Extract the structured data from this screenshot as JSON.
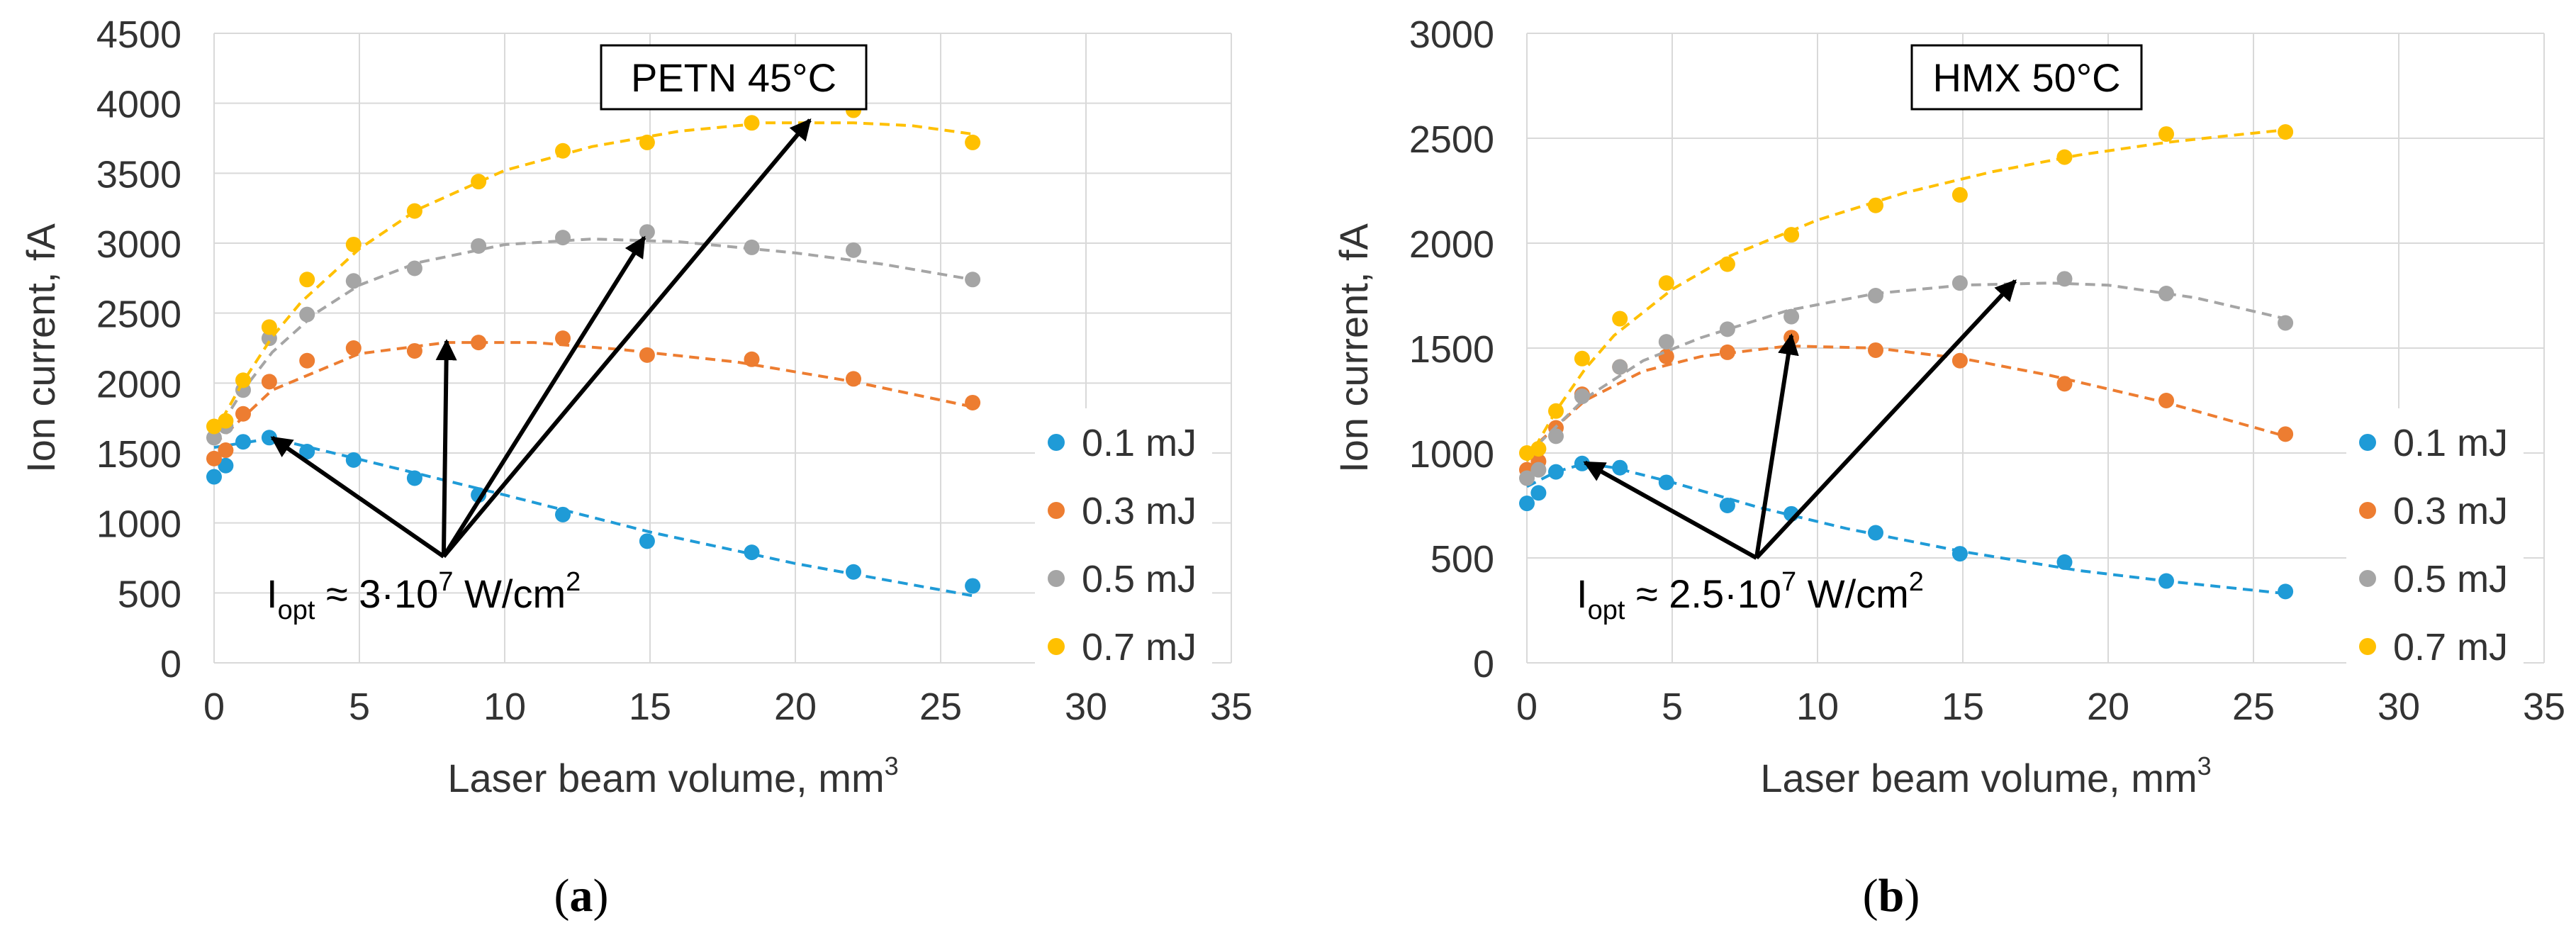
{
  "chart_data": [
    {
      "type": "scatter",
      "panel_label": "a",
      "title": "PETN 45°C",
      "xlabel": "Laser beam volume, mm",
      "xlabel_sup": "3",
      "ylabel": "Ion current, fA",
      "xlim": [
        0,
        35
      ],
      "ylim": [
        0,
        4500
      ],
      "xticks": [
        0,
        5,
        10,
        15,
        20,
        25,
        30,
        35
      ],
      "yticks": [
        0,
        500,
        1000,
        1500,
        2000,
        2500,
        3000,
        3500,
        4000,
        4500
      ],
      "grid": true,
      "legend": "right",
      "series": [
        {
          "name": "0.1 mJ",
          "color": "#1F9BD7",
          "points": [
            [
              0,
              1330
            ],
            [
              0.4,
              1410
            ],
            [
              1,
              1580
            ],
            [
              1.9,
              1610
            ],
            [
              3.2,
              1510
            ],
            [
              4.8,
              1450
            ],
            [
              6.9,
              1320
            ],
            [
              9.1,
              1200
            ],
            [
              12,
              1060
            ],
            [
              14.9,
              870
            ],
            [
              18.5,
              790
            ],
            [
              22,
              650
            ],
            [
              26.1,
              550
            ]
          ],
          "trend": [
            [
              0,
              1540
            ],
            [
              2,
              1605
            ],
            [
              5,
              1455
            ],
            [
              10,
              1200
            ],
            [
              15,
              935
            ],
            [
              20,
              710
            ],
            [
              26.1,
              480
            ]
          ]
        },
        {
          "name": "0.3 mJ",
          "color": "#ED7D31",
          "points": [
            [
              0,
              1460
            ],
            [
              0.4,
              1520
            ],
            [
              1,
              1780
            ],
            [
              1.9,
              2010
            ],
            [
              3.2,
              2160
            ],
            [
              4.8,
              2250
            ],
            [
              6.9,
              2230
            ],
            [
              9.1,
              2290
            ],
            [
              12,
              2320
            ],
            [
              14.9,
              2200
            ],
            [
              18.5,
              2170
            ],
            [
              22,
              2030
            ],
            [
              26.1,
              1860
            ]
          ],
          "trend": [
            [
              0,
              1560
            ],
            [
              2,
              1950
            ],
            [
              5,
              2210
            ],
            [
              8,
              2290
            ],
            [
              11,
              2290
            ],
            [
              14,
              2240
            ],
            [
              18,
              2150
            ],
            [
              22,
              2010
            ],
            [
              26.1,
              1830
            ]
          ]
        },
        {
          "name": "0.5 mJ",
          "color": "#A5A5A5",
          "points": [
            [
              0,
              1610
            ],
            [
              0.4,
              1690
            ],
            [
              1,
              1950
            ],
            [
              1.9,
              2320
            ],
            [
              3.2,
              2490
            ],
            [
              4.8,
              2730
            ],
            [
              6.9,
              2820
            ],
            [
              9.1,
              2980
            ],
            [
              12,
              3040
            ],
            [
              14.9,
              3080
            ],
            [
              18.5,
              2970
            ],
            [
              22,
              2950
            ],
            [
              26.1,
              2740
            ]
          ],
          "trend": [
            [
              0,
              1620
            ],
            [
              1,
              1950
            ],
            [
              2,
              2220
            ],
            [
              3.5,
              2500
            ],
            [
              5,
              2700
            ],
            [
              7,
              2860
            ],
            [
              10,
              2990
            ],
            [
              13,
              3030
            ],
            [
              16,
              3010
            ],
            [
              20,
              2930
            ],
            [
              23,
              2850
            ],
            [
              26.1,
              2740
            ]
          ]
        },
        {
          "name": "0.7 mJ",
          "color": "#FFC000",
          "points": [
            [
              0,
              1690
            ],
            [
              0.4,
              1730
            ],
            [
              1,
              2020
            ],
            [
              1.9,
              2400
            ],
            [
              3.2,
              2740
            ],
            [
              4.8,
              2990
            ],
            [
              6.9,
              3230
            ],
            [
              9.1,
              3440
            ],
            [
              12,
              3660
            ],
            [
              14.9,
              3720
            ],
            [
              18.5,
              3860
            ],
            [
              22,
              3950
            ],
            [
              26.1,
              3720
            ]
          ],
          "trend": [
            [
              0,
              1640
            ],
            [
              1,
              2010
            ],
            [
              2,
              2330
            ],
            [
              3,
              2580
            ],
            [
              5,
              2960
            ],
            [
              7,
              3240
            ],
            [
              10,
              3520
            ],
            [
              13,
              3690
            ],
            [
              16,
              3800
            ],
            [
              19,
              3860
            ],
            [
              22,
              3860
            ],
            [
              24,
              3840
            ],
            [
              26.1,
              3780
            ]
          ]
        }
      ],
      "annotation": {
        "label": "I",
        "sub": "opt",
        "approx": " ≈ 3·10",
        "exp": "7",
        "unit": " W/cm",
        "unit_sup": "2"
      },
      "arrows": {
        "origin": [
          7.9,
          760
        ],
        "targets": [
          [
            2,
            1610
          ],
          [
            8,
            2300
          ],
          [
            14.8,
            3040
          ],
          [
            20.5,
            3880
          ]
        ]
      }
    },
    {
      "type": "scatter",
      "panel_label": "b",
      "title": "HMX 50°C",
      "xlabel": "Laser beam volume, mm",
      "xlabel_sup": "3",
      "ylabel": "Ion current, fA",
      "xlim": [
        0,
        35
      ],
      "ylim": [
        0,
        3000
      ],
      "xticks": [
        0,
        5,
        10,
        15,
        20,
        25,
        30,
        35
      ],
      "yticks": [
        0,
        500,
        1000,
        1500,
        2000,
        2500,
        3000
      ],
      "grid": true,
      "legend": "right",
      "series": [
        {
          "name": "0.1 mJ",
          "color": "#1F9BD7",
          "points": [
            [
              0,
              760
            ],
            [
              0.4,
              810
            ],
            [
              1,
              910
            ],
            [
              1.9,
              950
            ],
            [
              3.2,
              930
            ],
            [
              4.8,
              860
            ],
            [
              6.9,
              750
            ],
            [
              9.1,
              710
            ],
            [
              12,
              620
            ],
            [
              14.9,
              520
            ],
            [
              18.5,
              480
            ],
            [
              22,
              390
            ],
            [
              26.1,
              340
            ]
          ],
          "trend": [
            [
              0,
              840
            ],
            [
              1,
              910
            ],
            [
              2,
              950
            ],
            [
              3,
              930
            ],
            [
              5,
              860
            ],
            [
              8,
              740
            ],
            [
              11,
              640
            ],
            [
              15,
              530
            ],
            [
              19,
              440
            ],
            [
              22,
              390
            ],
            [
              26.1,
              330
            ]
          ]
        },
        {
          "name": "0.3 mJ",
          "color": "#ED7D31",
          "points": [
            [
              0,
              920
            ],
            [
              0.4,
              960
            ],
            [
              1,
              1120
            ],
            [
              1.9,
              1280
            ],
            [
              3.2,
              1410
            ],
            [
              4.8,
              1460
            ],
            [
              6.9,
              1480
            ],
            [
              9.1,
              1550
            ],
            [
              12,
              1490
            ],
            [
              14.9,
              1440
            ],
            [
              18.5,
              1330
            ],
            [
              22,
              1250
            ],
            [
              26.1,
              1090
            ]
          ],
          "trend": [
            [
              0,
              1000
            ],
            [
              2,
              1250
            ],
            [
              4,
              1390
            ],
            [
              6,
              1460
            ],
            [
              9,
              1510
            ],
            [
              12,
              1500
            ],
            [
              15,
              1450
            ],
            [
              18,
              1370
            ],
            [
              22,
              1240
            ],
            [
              26.1,
              1080
            ]
          ]
        },
        {
          "name": "0.5 mJ",
          "color": "#A5A5A5",
          "points": [
            [
              0,
              880
            ],
            [
              0.4,
              920
            ],
            [
              1,
              1080
            ],
            [
              1.9,
              1270
            ],
            [
              3.2,
              1410
            ],
            [
              4.8,
              1530
            ],
            [
              6.9,
              1590
            ],
            [
              9.1,
              1650
            ],
            [
              12,
              1750
            ],
            [
              14.9,
              1810
            ],
            [
              18.5,
              1830
            ],
            [
              22,
              1760
            ],
            [
              26.1,
              1620
            ]
          ],
          "trend": [
            [
              0,
              990
            ],
            [
              2,
              1260
            ],
            [
              4,
              1440
            ],
            [
              6,
              1550
            ],
            [
              9,
              1680
            ],
            [
              12,
              1760
            ],
            [
              15,
              1800
            ],
            [
              18,
              1810
            ],
            [
              20,
              1800
            ],
            [
              23,
              1740
            ],
            [
              26.1,
              1640
            ]
          ]
        },
        {
          "name": "0.7 mJ",
          "color": "#FFC000",
          "points": [
            [
              0,
              1000
            ],
            [
              0.4,
              1020
            ],
            [
              1,
              1200
            ],
            [
              1.9,
              1450
            ],
            [
              3.2,
              1640
            ],
            [
              4.8,
              1810
            ],
            [
              6.9,
              1900
            ],
            [
              9.1,
              2040
            ],
            [
              12,
              2180
            ],
            [
              14.9,
              2230
            ],
            [
              18.5,
              2410
            ],
            [
              22,
              2520
            ],
            [
              26.1,
              2530
            ]
          ],
          "trend": [
            [
              0,
              960
            ],
            [
              1,
              1200
            ],
            [
              2,
              1400
            ],
            [
              3,
              1560
            ],
            [
              5,
              1780
            ],
            [
              7,
              1940
            ],
            [
              10,
              2110
            ],
            [
              13,
              2240
            ],
            [
              16,
              2340
            ],
            [
              19,
              2420
            ],
            [
              22,
              2480
            ],
            [
              24,
              2510
            ],
            [
              26.1,
              2540
            ]
          ]
        }
      ],
      "annotation": {
        "label": "I",
        "sub": "opt",
        "approx": " ≈ 2.5·10",
        "exp": "7",
        "unit": " W/cm",
        "unit_sup": "2"
      },
      "arrows": {
        "origin": [
          7.9,
          500
        ],
        "targets": [
          [
            2,
            955
          ],
          [
            9.1,
            1560
          ],
          [
            16.8,
            1820
          ]
        ]
      }
    }
  ]
}
